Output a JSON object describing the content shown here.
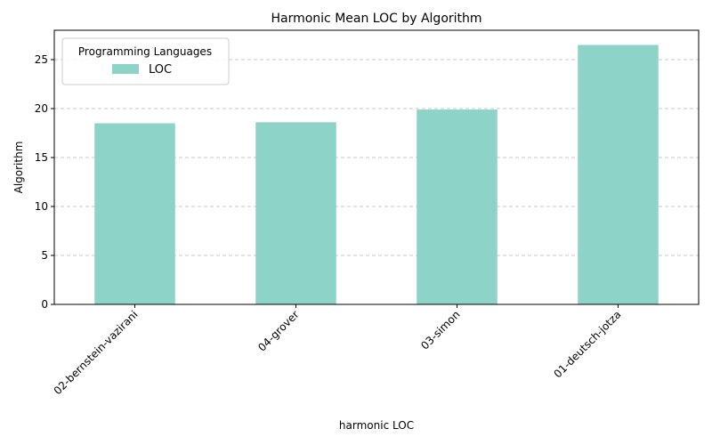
{
  "chart_data": {
    "type": "bar",
    "title": "Harmonic Mean LOC by Algorithm",
    "xlabel": "harmonic LOC",
    "ylabel": "Algorithm",
    "categories": [
      "02-bernstein-vazirani",
      "04-grover",
      "03-simon",
      "01-deutsch-jotza"
    ],
    "series": [
      {
        "name": "LOC",
        "values": [
          18.5,
          18.6,
          19.9,
          26.5
        ],
        "color": "#8dd3c7"
      }
    ],
    "ylim": [
      0,
      28
    ],
    "yticks": [
      "0",
      "5",
      "10",
      "15",
      "20",
      "25"
    ],
    "grid": "y-dashed",
    "legend": {
      "title": "Programming Languages",
      "placement": "top-left"
    }
  }
}
